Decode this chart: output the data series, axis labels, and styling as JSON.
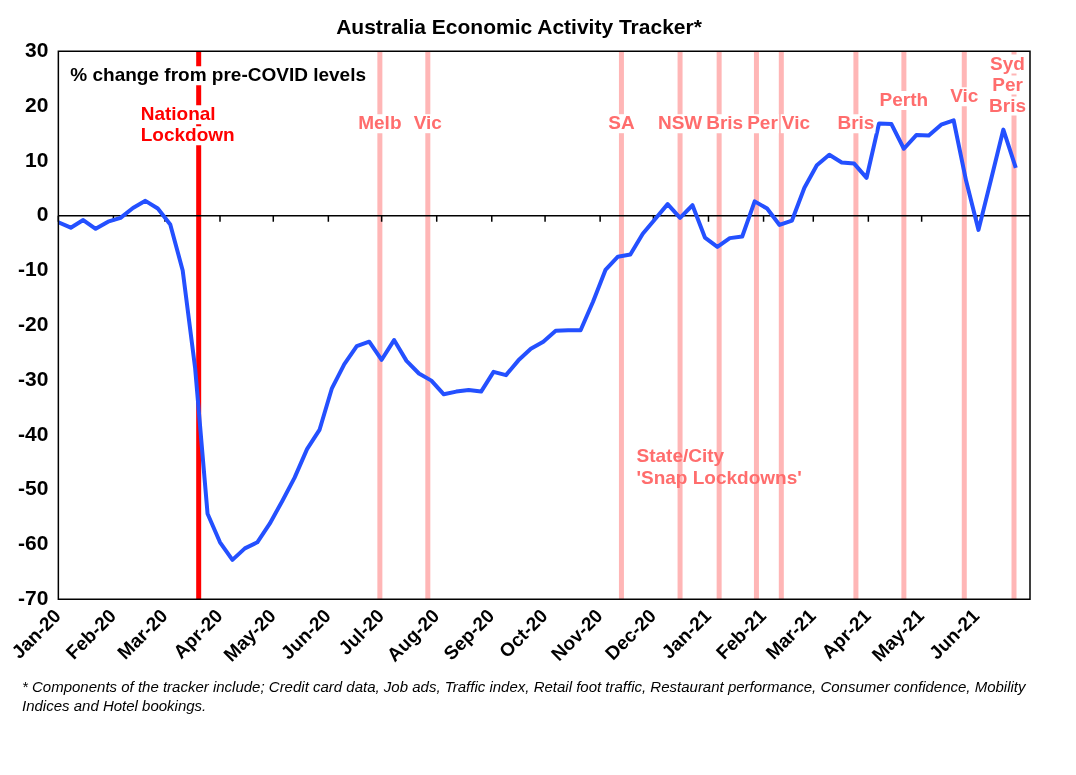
{
  "chart_data": {
    "type": "line",
    "title": "Australia Economic Activity Tracker*",
    "ylabel": "% change from pre-COVID levels",
    "x": [
      "2020-01-01",
      "2020-01-08",
      "2020-01-15",
      "2020-01-22",
      "2020-01-29",
      "2020-02-05",
      "2020-02-12",
      "2020-02-19",
      "2020-02-26",
      "2020-03-04",
      "2020-03-11",
      "2020-03-18",
      "2020-03-25",
      "2020-04-01",
      "2020-04-08",
      "2020-04-15",
      "2020-04-22",
      "2020-04-29",
      "2020-05-06",
      "2020-05-13",
      "2020-05-20",
      "2020-05-27",
      "2020-06-03",
      "2020-06-10",
      "2020-06-17",
      "2020-06-24",
      "2020-07-01",
      "2020-07-08",
      "2020-07-15",
      "2020-07-22",
      "2020-07-29",
      "2020-08-05",
      "2020-08-12",
      "2020-08-19",
      "2020-08-26",
      "2020-09-02",
      "2020-09-09",
      "2020-09-16",
      "2020-09-23",
      "2020-09-30",
      "2020-10-07",
      "2020-10-14",
      "2020-10-21",
      "2020-10-28",
      "2020-11-04",
      "2020-11-11",
      "2020-11-18",
      "2020-11-25",
      "2020-12-02",
      "2020-12-09",
      "2020-12-16",
      "2020-12-23",
      "2020-12-30",
      "2021-01-06",
      "2021-01-13",
      "2021-01-20",
      "2021-01-27",
      "2021-02-03",
      "2021-02-10",
      "2021-02-17",
      "2021-02-24",
      "2021-03-03",
      "2021-03-10",
      "2021-03-17",
      "2021-03-24",
      "2021-03-31",
      "2021-04-07",
      "2021-04-14",
      "2021-04-21",
      "2021-04-28",
      "2021-05-05",
      "2021-05-12",
      "2021-05-19",
      "2021-05-26",
      "2021-06-02",
      "2021-06-09",
      "2021-06-16",
      "2021-06-23"
    ],
    "series": [
      {
        "color": "#2450ff",
        "values": [
          -1.2,
          -2.2,
          -0.8,
          -2.4,
          -1.1,
          -0.4,
          1.4,
          2.7,
          1.3,
          -1.6,
          -10.0,
          -27.8,
          -54.4,
          -59.6,
          -62.8,
          -60.7,
          -59.6,
          -56.2,
          -52.1,
          -47.8,
          -42.6,
          -39.1,
          -31.5,
          -27.1,
          -23.8,
          -23.0,
          -26.3,
          -22.7,
          -26.5,
          -28.8,
          -30.1,
          -32.6,
          -32.1,
          -31.8,
          -32.1,
          -28.5,
          -29.1,
          -26.4,
          -24.3,
          -23.0,
          -21.0,
          -20.9,
          -20.9,
          -15.7,
          -9.9,
          -7.5,
          -7.1,
          -3.3,
          -0.6,
          2.1,
          -0.4,
          1.9,
          -4.0,
          -5.7,
          -4.1,
          -3.8,
          2.6,
          1.3,
          -1.7,
          -0.9,
          5.1,
          9.2,
          11.1,
          9.7,
          9.5,
          6.9,
          16.8,
          16.7,
          12.2,
          14.7,
          14.6,
          16.6,
          17.4,
          6.4,
          -2.6,
          6.5,
          15.7,
          8.7
        ]
      }
    ],
    "xlim": [
      "2020-01-01",
      "2021-07-01"
    ],
    "xticks": [
      {
        "value": "2020-01",
        "label": "Jan-20"
      },
      {
        "value": "2020-02",
        "label": "Feb-20"
      },
      {
        "value": "2020-03",
        "label": "Mar-20"
      },
      {
        "value": "2020-04",
        "label": "Apr-20"
      },
      {
        "value": "2020-05",
        "label": "May-20"
      },
      {
        "value": "2020-06",
        "label": "Jun-20"
      },
      {
        "value": "2020-07",
        "label": "Jul-20"
      },
      {
        "value": "2020-08",
        "label": "Aug-20"
      },
      {
        "value": "2020-09",
        "label": "Sep-20"
      },
      {
        "value": "2020-10",
        "label": "Oct-20"
      },
      {
        "value": "2020-11",
        "label": "Nov-20"
      },
      {
        "value": "2020-12",
        "label": "Dec-20"
      },
      {
        "value": "2021-01",
        "label": "Jan-21"
      },
      {
        "value": "2021-02",
        "label": "Feb-21"
      },
      {
        "value": "2021-03",
        "label": "Mar-21"
      },
      {
        "value": "2021-04",
        "label": "Apr-21"
      },
      {
        "value": "2021-05",
        "label": "May-21"
      },
      {
        "value": "2021-06",
        "label": "Jun-21"
      }
    ],
    "ylim": [
      -70,
      30
    ],
    "yticks": [
      -70,
      -60,
      -50,
      -40,
      -30,
      -20,
      -10,
      0,
      10,
      20,
      30
    ],
    "grid": false,
    "legend": false,
    "marker": "none",
    "line_style": "solid",
    "ref_lines": [
      {
        "axis": "x",
        "value": "2020-03-20",
        "label": "National Lockdown",
        "color": "#ff0000"
      },
      {
        "axis": "x",
        "value": "2020-06-30",
        "label": "Melb",
        "color": "#ffb6b6"
      },
      {
        "axis": "x",
        "value": "2020-07-27",
        "label": "Vic",
        "color": "#ffb6b6"
      },
      {
        "axis": "x",
        "value": "2020-11-13",
        "label": "SA",
        "color": "#ffb6b6"
      },
      {
        "axis": "x",
        "value": "2020-12-16",
        "label": "NSW",
        "color": "#ffb6b6"
      },
      {
        "axis": "x",
        "value": "2021-01-07",
        "label": "Bris",
        "color": "#ffb6b6"
      },
      {
        "axis": "x",
        "value": "2021-01-28",
        "label": "Per",
        "color": "#ffb6b6"
      },
      {
        "axis": "x",
        "value": "2021-02-11",
        "label": "Vic",
        "color": "#ffb6b6"
      },
      {
        "axis": "x",
        "value": "2021-03-25",
        "label": "Bris",
        "color": "#ffb6b6"
      },
      {
        "axis": "x",
        "value": "2021-04-21",
        "label": "Perth",
        "color": "#ffb6b6"
      },
      {
        "axis": "x",
        "value": "2021-05-25",
        "label": "Vic",
        "color": "#ffb6b6"
      },
      {
        "axis": "x",
        "value": "2021-06-22",
        "label": "Syd Per Bris",
        "color": "#ffb6b6"
      }
    ],
    "annotations": [
      "State/City 'Snap Lockdowns'",
      "* Components of the tracker include; Credit card data, Job ads, Traffic index, Retail foot traffic, Restaurant performance, Consumer confidence, Mobility Indices and Hotel bookings."
    ]
  }
}
